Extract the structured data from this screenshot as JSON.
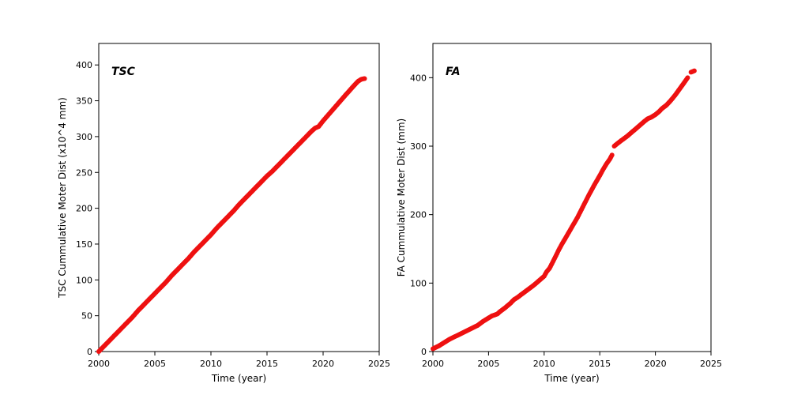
{
  "page": {
    "background": "#ffffff"
  },
  "chart_data": [
    {
      "type": "scatter",
      "title": "TSC",
      "xlabel": "Time (year)",
      "ylabel": "TSC Cummulative Moter Dist (x10^4 mm)",
      "xlim": [
        2000,
        2025
      ],
      "ylim": [
        0,
        430
      ],
      "xticks": [
        2000,
        2005,
        2010,
        2015,
        2020,
        2025
      ],
      "yticks": [
        0,
        50,
        100,
        150,
        200,
        250,
        300,
        350,
        400
      ],
      "grid": false,
      "legend": "none",
      "marker_color": "#ee1111",
      "segments": [
        [
          [
            2000.0,
            0
          ],
          [
            2000.5,
            8
          ],
          [
            2001.0,
            16
          ],
          [
            2001.5,
            24
          ],
          [
            2002.0,
            32
          ],
          [
            2002.5,
            40
          ],
          [
            2003.0,
            48
          ],
          [
            2003.5,
            57
          ],
          [
            2004.0,
            65
          ],
          [
            2004.5,
            73
          ],
          [
            2005.0,
            81
          ],
          [
            2005.5,
            89
          ],
          [
            2006.0,
            97
          ],
          [
            2006.5,
            106
          ],
          [
            2007.0,
            114
          ],
          [
            2007.5,
            122
          ],
          [
            2008.0,
            130
          ],
          [
            2008.5,
            139
          ],
          [
            2009.0,
            147
          ],
          [
            2009.5,
            155
          ],
          [
            2010.0,
            163
          ],
          [
            2010.5,
            172
          ],
          [
            2011.0,
            180
          ],
          [
            2011.5,
            188
          ],
          [
            2012.0,
            196
          ],
          [
            2012.5,
            205
          ],
          [
            2013.0,
            213
          ],
          [
            2013.5,
            221
          ],
          [
            2014.0,
            229
          ],
          [
            2014.5,
            237
          ],
          [
            2015.0,
            245
          ],
          [
            2015.5,
            252
          ],
          [
            2016.0,
            260
          ],
          [
            2016.5,
            268
          ],
          [
            2017.0,
            276
          ],
          [
            2017.5,
            284
          ],
          [
            2018.0,
            292
          ],
          [
            2018.5,
            300
          ],
          [
            2019.0,
            308
          ],
          [
            2019.3,
            312
          ],
          [
            2019.6,
            314
          ],
          [
            2020.0,
            322
          ],
          [
            2020.5,
            331
          ],
          [
            2021.0,
            340
          ],
          [
            2021.5,
            349
          ],
          [
            2022.0,
            358
          ],
          [
            2022.4,
            365
          ],
          [
            2022.8,
            372
          ],
          [
            2023.1,
            377
          ],
          [
            2023.4,
            380
          ],
          [
            2023.7,
            381
          ]
        ]
      ]
    },
    {
      "type": "scatter",
      "title": "FA",
      "xlabel": "Time (year)",
      "ylabel": "FA Cummulative Moter Dist (mm)",
      "xlim": [
        2000,
        2025
      ],
      "ylim": [
        0,
        450
      ],
      "xticks": [
        2000,
        2005,
        2010,
        2015,
        2020,
        2025
      ],
      "yticks": [
        0,
        100,
        200,
        300,
        400
      ],
      "grid": false,
      "legend": "none",
      "marker_color": "#ee1111",
      "segments": [
        [
          [
            2000.0,
            4
          ],
          [
            2000.5,
            8
          ],
          [
            2001.0,
            13
          ],
          [
            2001.5,
            18
          ],
          [
            2002.0,
            22
          ],
          [
            2002.5,
            26
          ],
          [
            2003.0,
            30
          ],
          [
            2003.5,
            34
          ],
          [
            2004.0,
            38
          ],
          [
            2004.5,
            44
          ],
          [
            2005.0,
            49
          ],
          [
            2005.3,
            52
          ],
          [
            2005.8,
            55
          ],
          [
            2006.0,
            58
          ],
          [
            2006.5,
            64
          ],
          [
            2007.0,
            71
          ],
          [
            2007.3,
            76
          ],
          [
            2007.6,
            79
          ],
          [
            2008.0,
            84
          ],
          [
            2008.5,
            90
          ],
          [
            2009.0,
            96
          ],
          [
            2009.5,
            103
          ],
          [
            2010.0,
            110
          ],
          [
            2010.2,
            116
          ],
          [
            2010.5,
            122
          ],
          [
            2011.0,
            138
          ],
          [
            2011.3,
            148
          ],
          [
            2011.6,
            157
          ],
          [
            2012.0,
            168
          ],
          [
            2012.5,
            182
          ],
          [
            2013.0,
            196
          ],
          [
            2013.5,
            212
          ],
          [
            2014.0,
            228
          ],
          [
            2014.5,
            243
          ],
          [
            2015.0,
            257
          ],
          [
            2015.3,
            266
          ],
          [
            2015.6,
            274
          ],
          [
            2015.9,
            281
          ],
          [
            2016.1,
            287
          ]
        ],
        [
          [
            2016.3,
            300
          ],
          [
            2016.6,
            304
          ],
          [
            2017.0,
            309
          ],
          [
            2017.5,
            315
          ],
          [
            2018.0,
            322
          ],
          [
            2018.5,
            329
          ],
          [
            2019.0,
            336
          ],
          [
            2019.3,
            340
          ],
          [
            2019.6,
            342
          ],
          [
            2020.0,
            346
          ],
          [
            2020.3,
            350
          ],
          [
            2020.6,
            355
          ],
          [
            2021.0,
            360
          ],
          [
            2021.4,
            367
          ],
          [
            2021.8,
            375
          ],
          [
            2022.2,
            384
          ],
          [
            2022.6,
            393
          ],
          [
            2022.9,
            400
          ]
        ],
        [
          [
            2023.2,
            408
          ],
          [
            2023.5,
            410
          ]
        ]
      ]
    }
  ]
}
